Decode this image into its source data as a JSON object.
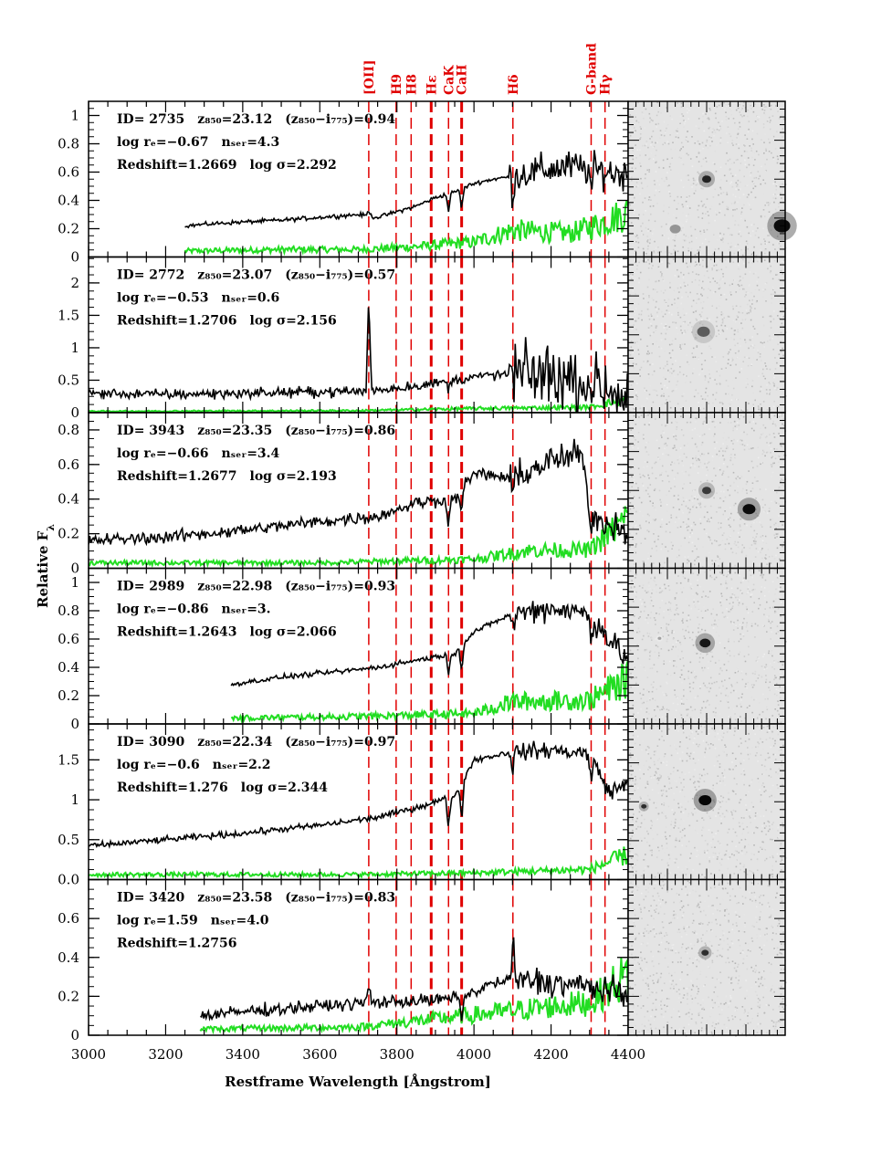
{
  "chart_data": {
    "type": "line",
    "xlabel": "Restframe Wavelength [Ångstrom]",
    "ylabel": "Relative F",
    "ylabel_subscript": "λ",
    "xlim": [
      3000,
      4400
    ],
    "x_ticks": [
      3000,
      3200,
      3400,
      3600,
      3800,
      4000,
      4200,
      4400
    ],
    "x_tick_labels": [
      "3000",
      "3200",
      "3400",
      "3600",
      "3800",
      "4000",
      "4200",
      "4400"
    ],
    "spectral_lines": [
      {
        "label": "[OII]",
        "wavelength": 3727,
        "bold": false
      },
      {
        "label": "H9",
        "wavelength": 3798,
        "bold": false
      },
      {
        "label": "H8",
        "wavelength": 3837,
        "bold": false
      },
      {
        "label": "Hε",
        "wavelength": 3889,
        "bold": true
      },
      {
        "label": "CaK",
        "wavelength": 3934,
        "bold": false
      },
      {
        "label": "CaH",
        "wavelength": 3968,
        "bold": true
      },
      {
        "label": "Hδ",
        "wavelength": 4101,
        "bold": false
      },
      {
        "label": "G-band",
        "wavelength": 4304,
        "bold": false
      },
      {
        "label": "Hγ",
        "wavelength": 4340,
        "bold": false
      }
    ],
    "colors": {
      "spectrum": "#000000",
      "noise": "#22dd22",
      "lines": "#e00000"
    },
    "panels": [
      {
        "id_text": "ID= 2735",
        "mag_text": "z₈₅₀=23.12",
        "color_text": "(z₈₅₀−i₇₇₅)=0.94",
        "re_text": "log rₑ=−0.67",
        "n_text": "nₛₑᵣ=4.3",
        "redshift_text": "Redshift=1.2669",
        "sigma_text": "log σ=2.292",
        "ylim": [
          0,
          1.1
        ],
        "y_ticks": [
          0,
          0.2,
          0.4,
          0.6,
          0.8,
          1
        ],
        "y_tick_labels": [
          "0",
          "0.2",
          "0.4",
          "0.6",
          "0.8",
          "1"
        ],
        "spectrum_start": 3250,
        "spectrum": [
          [
            3250,
            0.22
          ],
          [
            3350,
            0.24
          ],
          [
            3500,
            0.26
          ],
          [
            3650,
            0.29
          ],
          [
            3700,
            0.3
          ],
          [
            3750,
            0.28
          ],
          [
            3800,
            0.32
          ],
          [
            3850,
            0.36
          ],
          [
            3900,
            0.42
          ],
          [
            3950,
            0.46
          ],
          [
            4000,
            0.52
          ],
          [
            4050,
            0.55
          ],
          [
            4100,
            0.57
          ],
          [
            4150,
            0.6
          ],
          [
            4200,
            0.62
          ],
          [
            4250,
            0.64
          ],
          [
            4300,
            0.62
          ],
          [
            4350,
            0.6
          ],
          [
            4400,
            0.58
          ]
        ],
        "noise": [
          [
            3250,
            0.04
          ],
          [
            3500,
            0.05
          ],
          [
            3700,
            0.05
          ],
          [
            3850,
            0.07
          ],
          [
            4000,
            0.1
          ],
          [
            4100,
            0.18
          ],
          [
            4250,
            0.16
          ],
          [
            4300,
            0.2
          ],
          [
            4400,
            0.3
          ]
        ],
        "features": [
          {
            "x": 3727,
            "dy": 0.04
          },
          {
            "x": 3934,
            "dy": -0.12
          },
          {
            "x": 3968,
            "dy": -0.14
          },
          {
            "x": 4101,
            "dy": -0.12
          },
          {
            "x": 4304,
            "dy": -0.15
          }
        ],
        "noise_level": 0.02,
        "noise_level_red": 0.16
      },
      {
        "id_text": "ID= 2772",
        "mag_text": "z₈₅₀=23.07",
        "color_text": "(z₈₅₀−i₇₇₅)=0.57",
        "re_text": "log rₑ=−0.53",
        "n_text": "nₛₑᵣ=0.6",
        "redshift_text": "Redshift=1.2706",
        "sigma_text": "log σ=2.156",
        "ylim": [
          0,
          2.4
        ],
        "y_ticks": [
          0,
          0.5,
          1,
          1.5,
          2
        ],
        "y_tick_labels": [
          "0",
          "0.5",
          "1",
          "1.5",
          "2"
        ],
        "spectrum_start": 3000,
        "spectrum": [
          [
            3000,
            0.3
          ],
          [
            3200,
            0.28
          ],
          [
            3400,
            0.3
          ],
          [
            3600,
            0.32
          ],
          [
            3720,
            0.33
          ],
          [
            3800,
            0.38
          ],
          [
            3900,
            0.45
          ],
          [
            4000,
            0.55
          ],
          [
            4100,
            0.6
          ],
          [
            4200,
            0.58
          ],
          [
            4300,
            0.45
          ],
          [
            4350,
            0.35
          ],
          [
            4400,
            0.25
          ]
        ],
        "noise": [
          [
            3000,
            0.02
          ],
          [
            3700,
            0.03
          ],
          [
            4000,
            0.06
          ],
          [
            4300,
            0.08
          ],
          [
            4400,
            0.2
          ]
        ],
        "features": [
          {
            "x": 3727,
            "dy": 1.5
          },
          {
            "x": 3934,
            "dy": -0.12
          },
          {
            "x": 4101,
            "dy": -0.1
          }
        ],
        "noise_level": 0.05,
        "noise_level_red": 0.3
      },
      {
        "id_text": "ID= 3943",
        "mag_text": "z₈₅₀=23.35",
        "color_text": "(z₈₅₀−i₇₇₅)=0.86",
        "re_text": "log rₑ=−0.66",
        "n_text": "nₛₑᵣ=3.4",
        "redshift_text": "Redshift=1.2677",
        "sigma_text": "log σ=2.193",
        "ylim": [
          0,
          0.9
        ],
        "y_ticks": [
          0,
          0.2,
          0.4,
          0.6,
          0.8
        ],
        "y_tick_labels": [
          "0",
          "0.2",
          "0.4",
          "0.6",
          "0.8"
        ],
        "spectrum_start": 3000,
        "spectrum": [
          [
            3000,
            0.16
          ],
          [
            3200,
            0.18
          ],
          [
            3400,
            0.22
          ],
          [
            3600,
            0.27
          ],
          [
            3750,
            0.3
          ],
          [
            3850,
            0.38
          ],
          [
            3950,
            0.4
          ],
          [
            4000,
            0.55
          ],
          [
            4100,
            0.52
          ],
          [
            4200,
            0.62
          ],
          [
            4280,
            0.66
          ],
          [
            4300,
            0.3
          ],
          [
            4400,
            0.22
          ]
        ],
        "noise": [
          [
            3000,
            0.03
          ],
          [
            3600,
            0.03
          ],
          [
            4000,
            0.05
          ],
          [
            4150,
            0.1
          ],
          [
            4300,
            0.1
          ],
          [
            4400,
            0.28
          ]
        ],
        "features": [
          {
            "x": 3934,
            "dy": -0.15
          },
          {
            "x": 3968,
            "dy": -0.12
          },
          {
            "x": 4101,
            "dy": -0.1
          }
        ],
        "noise_level": 0.06,
        "noise_level_red": 0.14
      },
      {
        "id_text": "ID= 2989",
        "mag_text": "z₈₅₀=22.98",
        "color_text": "(z₈₅₀−i₇₇₅)=0.93",
        "re_text": "log rₑ=−0.86",
        "n_text": "nₛₑᵣ=3.",
        "redshift_text": "Redshift=1.2643",
        "sigma_text": "log σ=2.066",
        "ylim": [
          0,
          1.1
        ],
        "y_ticks": [
          0,
          0.2,
          0.4,
          0.6,
          0.8,
          1
        ],
        "y_tick_labels": [
          "0",
          "0.2",
          "0.4",
          "0.6",
          "0.8",
          "1"
        ],
        "spectrum_start": 3370,
        "spectrum": [
          [
            3370,
            0.28
          ],
          [
            3500,
            0.33
          ],
          [
            3650,
            0.37
          ],
          [
            3750,
            0.4
          ],
          [
            3850,
            0.45
          ],
          [
            3950,
            0.5
          ],
          [
            4000,
            0.65
          ],
          [
            4100,
            0.78
          ],
          [
            4200,
            0.82
          ],
          [
            4300,
            0.78
          ],
          [
            4350,
            0.6
          ],
          [
            4400,
            0.45
          ]
        ],
        "noise": [
          [
            3370,
            0.04
          ],
          [
            3700,
            0.05
          ],
          [
            4000,
            0.07
          ],
          [
            4100,
            0.15
          ],
          [
            4300,
            0.16
          ],
          [
            4400,
            0.3
          ]
        ],
        "features": [
          {
            "x": 3934,
            "dy": -0.15
          },
          {
            "x": 3968,
            "dy": -0.18
          },
          {
            "x": 4101,
            "dy": -0.12
          },
          {
            "x": 4304,
            "dy": -0.2
          }
        ],
        "noise_level": 0.025,
        "noise_level_red": 0.12
      },
      {
        "id_text": "ID= 3090",
        "mag_text": "z₈₅₀=22.34",
        "color_text": "(z₈₅₀−i₇₇₅)=0.97",
        "re_text": "log rₑ=−0.6",
        "n_text": "nₛₑᵣ=2.2",
        "redshift_text": "Redshift=1.276",
        "sigma_text": "log σ=2.344",
        "ylim": [
          0,
          1.95
        ],
        "y_ticks": [
          0,
          0.5,
          1,
          1.5
        ],
        "y_tick_labels": [
          "0.0",
          "0.5",
          "1",
          "1.5"
        ],
        "spectrum_start": 3000,
        "spectrum": [
          [
            3000,
            0.42
          ],
          [
            3200,
            0.5
          ],
          [
            3400,
            0.58
          ],
          [
            3600,
            0.68
          ],
          [
            3750,
            0.78
          ],
          [
            3850,
            0.9
          ],
          [
            3950,
            1.05
          ],
          [
            4000,
            1.5
          ],
          [
            4100,
            1.6
          ],
          [
            4200,
            1.62
          ],
          [
            4300,
            1.58
          ],
          [
            4350,
            1.1
          ],
          [
            4400,
            1.2
          ]
        ],
        "noise": [
          [
            3000,
            0.06
          ],
          [
            3700,
            0.06
          ],
          [
            4000,
            0.08
          ],
          [
            4300,
            0.12
          ],
          [
            4400,
            0.3
          ]
        ],
        "features": [
          {
            "x": 3934,
            "dy": -0.4
          },
          {
            "x": 3968,
            "dy": -0.5
          },
          {
            "x": 4101,
            "dy": -0.2
          },
          {
            "x": 4304,
            "dy": -0.35
          }
        ],
        "noise_level": 0.03,
        "noise_level_red": 0.08
      },
      {
        "id_text": "ID= 3420",
        "mag_text": "z₈₅₀=23.58",
        "color_text": "(z₈₅₀−i₇₇₅)=0.83",
        "re_text": "log rₑ=1.59",
        "n_text": "nₛₑᵣ=4.0",
        "redshift_text": "Redshift=1.2756",
        "sigma_text": "",
        "ylim": [
          0,
          0.8
        ],
        "y_ticks": [
          0,
          0.2,
          0.4,
          0.6
        ],
        "y_tick_labels": [
          "0",
          "0.2",
          "0.4",
          "0.6"
        ],
        "spectrum_start": 3290,
        "spectrum": [
          [
            3290,
            0.1
          ],
          [
            3450,
            0.13
          ],
          [
            3600,
            0.15
          ],
          [
            3750,
            0.17
          ],
          [
            3900,
            0.18
          ],
          [
            3980,
            0.2
          ],
          [
            4050,
            0.27
          ],
          [
            4150,
            0.28
          ],
          [
            4300,
            0.25
          ],
          [
            4400,
            0.2
          ]
        ],
        "noise": [
          [
            3290,
            0.03
          ],
          [
            3700,
            0.04
          ],
          [
            3900,
            0.08
          ],
          [
            4100,
            0.12
          ],
          [
            4300,
            0.16
          ],
          [
            4400,
            0.3
          ]
        ],
        "features": [
          {
            "x": 3727,
            "dy": 0.1
          },
          {
            "x": 3968,
            "dy": -0.1
          },
          {
            "x": 4101,
            "dy": 0.25
          }
        ],
        "noise_level": 0.06,
        "noise_level_red": 0.14
      }
    ],
    "thumbnails": [
      {
        "sources": [
          {
            "x": 0.5,
            "y": 0.5,
            "r": 5,
            "dark": 0.85
          },
          {
            "x": 0.3,
            "y": 0.82,
            "r": 6,
            "dark": 0.35
          },
          {
            "x": 0.98,
            "y": 0.8,
            "r": 9,
            "dark": 0.95
          }
        ]
      },
      {
        "sources": [
          {
            "x": 0.48,
            "y": 0.48,
            "r": 7,
            "dark": 0.6
          }
        ]
      },
      {
        "sources": [
          {
            "x": 0.5,
            "y": 0.5,
            "r": 5,
            "dark": 0.75
          },
          {
            "x": 0.77,
            "y": 0.62,
            "r": 7,
            "dark": 0.95
          }
        ]
      },
      {
        "sources": [
          {
            "x": 0.49,
            "y": 0.48,
            "r": 6,
            "dark": 0.9
          },
          {
            "x": 0.2,
            "y": 0.45,
            "r": 2,
            "dark": 0.3
          }
        ]
      },
      {
        "sources": [
          {
            "x": 0.49,
            "y": 0.49,
            "r": 7,
            "dark": 0.97
          },
          {
            "x": 0.1,
            "y": 0.53,
            "r": 3,
            "dark": 0.8
          }
        ]
      },
      {
        "sources": [
          {
            "x": 0.49,
            "y": 0.47,
            "r": 4,
            "dark": 0.8
          }
        ]
      }
    ]
  }
}
